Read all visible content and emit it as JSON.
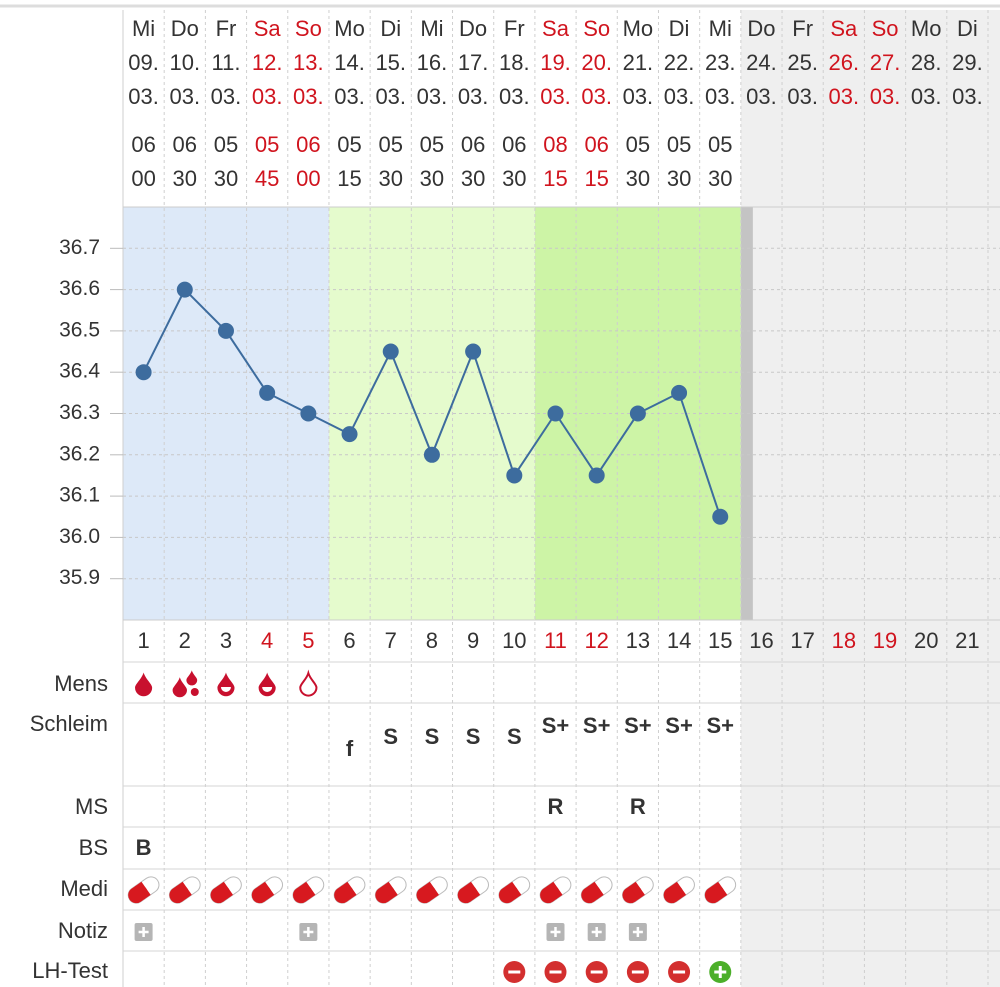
{
  "chart_data": {
    "type": "line",
    "x": [
      1,
      2,
      3,
      4,
      5,
      6,
      7,
      8,
      9,
      10,
      11,
      12,
      13,
      14,
      15
    ],
    "series": [
      {
        "color": "#3d6c9e",
        "values": [
          36.4,
          36.6,
          36.5,
          36.35,
          36.3,
          36.25,
          36.45,
          36.2,
          36.45,
          36.15,
          36.3,
          36.15,
          36.3,
          36.35,
          36.05
        ]
      }
    ],
    "xlim": [
      0.5,
      21.5
    ],
    "xticks": [
      1,
      2,
      3,
      4,
      5,
      6,
      7,
      8,
      9,
      10,
      11,
      12,
      13,
      14,
      15,
      16,
      17,
      18,
      19,
      20,
      21
    ],
    "ylim": [
      35.8,
      36.8
    ],
    "yticks": [
      35.9,
      {
        "value": 36,
        "label": "36.0"
      },
      36.1,
      36.2,
      36.3,
      36.4,
      36.5,
      36.6,
      36.7
    ],
    "grid": true
  },
  "header": {
    "days": [
      {
        "weekday": "Mi",
        "date": "09.",
        "month": "03.",
        "hour": "06",
        "minute": "00",
        "weekend": false
      },
      {
        "weekday": "Do",
        "date": "10.",
        "month": "03.",
        "hour": "06",
        "minute": "30",
        "weekend": false
      },
      {
        "weekday": "Fr",
        "date": "11.",
        "month": "03.",
        "hour": "05",
        "minute": "30",
        "weekend": false
      },
      {
        "weekday": "Sa",
        "date": "12.",
        "month": "03.",
        "hour": "05",
        "minute": "45",
        "weekend": true
      },
      {
        "weekday": "So",
        "date": "13.",
        "month": "03.",
        "hour": "06",
        "minute": "00",
        "weekend": true
      },
      {
        "weekday": "Mo",
        "date": "14.",
        "month": "03.",
        "hour": "05",
        "minute": "15",
        "weekend": false
      },
      {
        "weekday": "Di",
        "date": "15.",
        "month": "03.",
        "hour": "05",
        "minute": "30",
        "weekend": false
      },
      {
        "weekday": "Mi",
        "date": "16.",
        "month": "03.",
        "hour": "05",
        "minute": "30",
        "weekend": false
      },
      {
        "weekday": "Do",
        "date": "17.",
        "month": "03.",
        "hour": "06",
        "minute": "30",
        "weekend": false
      },
      {
        "weekday": "Fr",
        "date": "18.",
        "month": "03.",
        "hour": "06",
        "minute": "30",
        "weekend": false
      },
      {
        "weekday": "Sa",
        "date": "19.",
        "month": "03.",
        "hour": "08",
        "minute": "15",
        "weekend": true
      },
      {
        "weekday": "So",
        "date": "20.",
        "month": "03.",
        "hour": "06",
        "minute": "15",
        "weekend": true
      },
      {
        "weekday": "Mo",
        "date": "21.",
        "month": "03.",
        "hour": "05",
        "minute": "30",
        "weekend": false
      },
      {
        "weekday": "Di",
        "date": "22.",
        "month": "03.",
        "hour": "05",
        "minute": "30",
        "weekend": false
      },
      {
        "weekday": "Mi",
        "date": "23.",
        "month": "03.",
        "hour": "05",
        "minute": "30",
        "weekend": false
      },
      {
        "weekday": "Do",
        "date": "24.",
        "month": "03.",
        "weekend": false
      },
      {
        "weekday": "Fr",
        "date": "25.",
        "month": "03.",
        "weekend": false
      },
      {
        "weekday": "Sa",
        "date": "26.",
        "month": "03.",
        "weekend": true
      },
      {
        "weekday": "So",
        "date": "27.",
        "month": "03.",
        "weekend": true
      },
      {
        "weekday": "Mo",
        "date": "28.",
        "month": "03.",
        "weekend": false
      },
      {
        "weekday": "Di",
        "date": "29.",
        "month": "03.",
        "weekend": false
      }
    ]
  },
  "rows": [
    {
      "label": "Mens"
    },
    {
      "label": "Schleim",
      "entries": [
        null,
        null,
        null,
        null,
        null,
        "f",
        "S",
        "S",
        "S",
        "S",
        "S+",
        "S+",
        "S+",
        "S+",
        "S+"
      ]
    },
    {
      "label": "MS",
      "entries": [
        null,
        null,
        null,
        null,
        null,
        null,
        null,
        null,
        null,
        null,
        "R",
        null,
        "R"
      ]
    },
    {
      "label": "BS",
      "entries": [
        "B"
      ]
    },
    {
      "label": "Medi"
    },
    {
      "label": "Notiz"
    },
    {
      "label": "LH-Test"
    }
  ]
}
